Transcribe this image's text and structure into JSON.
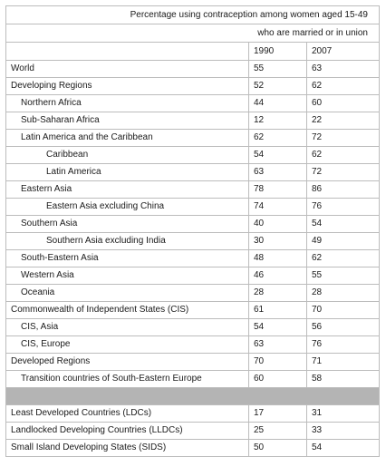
{
  "table": {
    "caption_line1": "Percentage using contraception among women aged 15-49",
    "caption_line2": "who are married or in union",
    "year_1990": "1990",
    "year_2007": "2007",
    "rows": [
      {
        "region": "World",
        "indent": 0,
        "v1990": "55",
        "v2007": "63"
      },
      {
        "region": "Developing Regions",
        "indent": 0,
        "v1990": "52",
        "v2007": "62"
      },
      {
        "region": "Northern Africa",
        "indent": 1,
        "v1990": "44",
        "v2007": "60"
      },
      {
        "region": "Sub-Saharan Africa",
        "indent": 1,
        "v1990": "12",
        "v2007": "22"
      },
      {
        "region": "Latin America and the Caribbean",
        "indent": 1,
        "v1990": "62",
        "v2007": "72"
      },
      {
        "region": "Caribbean",
        "indent": 2,
        "v1990": "54",
        "v2007": "62"
      },
      {
        "region": "Latin America",
        "indent": 2,
        "v1990": "63",
        "v2007": "72"
      },
      {
        "region": "Eastern Asia",
        "indent": 1,
        "v1990": "78",
        "v2007": "86"
      },
      {
        "region": "Eastern Asia excluding China",
        "indent": 2,
        "v1990": "74",
        "v2007": "76"
      },
      {
        "region": "Southern Asia",
        "indent": 1,
        "v1990": "40",
        "v2007": "54"
      },
      {
        "region": "Southern Asia excluding India",
        "indent": 2,
        "v1990": "30",
        "v2007": "49"
      },
      {
        "region": "South-Eastern Asia",
        "indent": 1,
        "v1990": "48",
        "v2007": "62"
      },
      {
        "region": "Western Asia",
        "indent": 1,
        "v1990": "46",
        "v2007": "55"
      },
      {
        "region": "Oceania",
        "indent": 1,
        "v1990": "28",
        "v2007": "28"
      },
      {
        "region": "Commonwealth of Independent States (CIS)",
        "indent": 0,
        "v1990": "61",
        "v2007": "70"
      },
      {
        "region": "CIS, Asia",
        "indent": 1,
        "v1990": "54",
        "v2007": "56"
      },
      {
        "region": "CIS, Europe",
        "indent": 1,
        "v1990": "63",
        "v2007": "76"
      },
      {
        "region": "Developed Regions",
        "indent": 0,
        "v1990": "70",
        "v2007": "71"
      },
      {
        "region": "Transition countries of South-Eastern Europe",
        "indent": 1,
        "v1990": "60",
        "v2007": "58"
      }
    ],
    "extra_rows": [
      {
        "region": "Least Developed Countries (LDCs)",
        "indent": 0,
        "v1990": "17",
        "v2007": "31"
      },
      {
        "region": "Landlocked Developing Countries (LLDCs)",
        "indent": 0,
        "v1990": "25",
        "v2007": "33"
      },
      {
        "region": "Small Island Developing States (SIDS)",
        "indent": 0,
        "v1990": "50",
        "v2007": "54"
      }
    ]
  }
}
